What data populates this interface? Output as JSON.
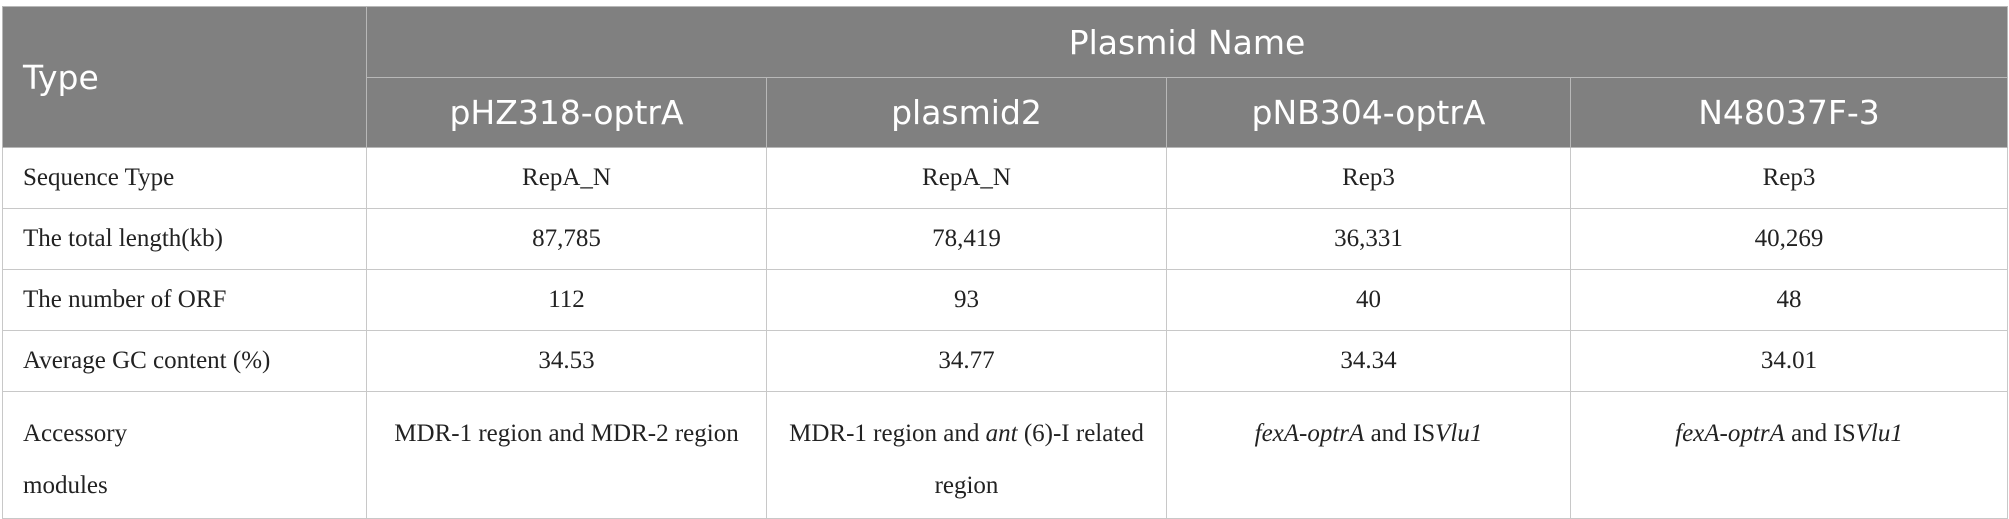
{
  "header": {
    "type": "Type",
    "group": "Plasmid Name",
    "columns": [
      "pHZ318-optrA",
      "plasmid2",
      "pNB304-optrA",
      "N48037F-3"
    ]
  },
  "table": {
    "rows": [
      [
        "Sequence Type",
        "RepA_N",
        "RepA_N",
        "Rep3",
        "Rep3"
      ],
      [
        "The total length(kb)",
        "87,785",
        "78,419",
        "36,331",
        "40,269"
      ],
      [
        "The number of ORF",
        "112",
        "93",
        "40",
        "48"
      ],
      [
        "Average GC content (%)",
        "34.53",
        "34.77",
        "34.34",
        "34.01"
      ],
      [
        "Accessory modules",
        [
          {
            "text": "MDR-1 region and MDR-2 region"
          }
        ],
        [
          {
            "text": "MDR-1 region and "
          },
          {
            "text": "ant",
            "italic": true
          },
          {
            "text": " (6)-I related region"
          }
        ],
        [
          {
            "text": "fexA-optrA",
            "italic": true
          },
          {
            "text": " and IS"
          },
          {
            "text": "Vlu1",
            "italic": true
          }
        ],
        [
          {
            "text": "fexA-optrA",
            "italic": true
          },
          {
            "text": " and IS"
          },
          {
            "text": "Vlu1",
            "italic": true
          }
        ]
      ]
    ]
  }
}
